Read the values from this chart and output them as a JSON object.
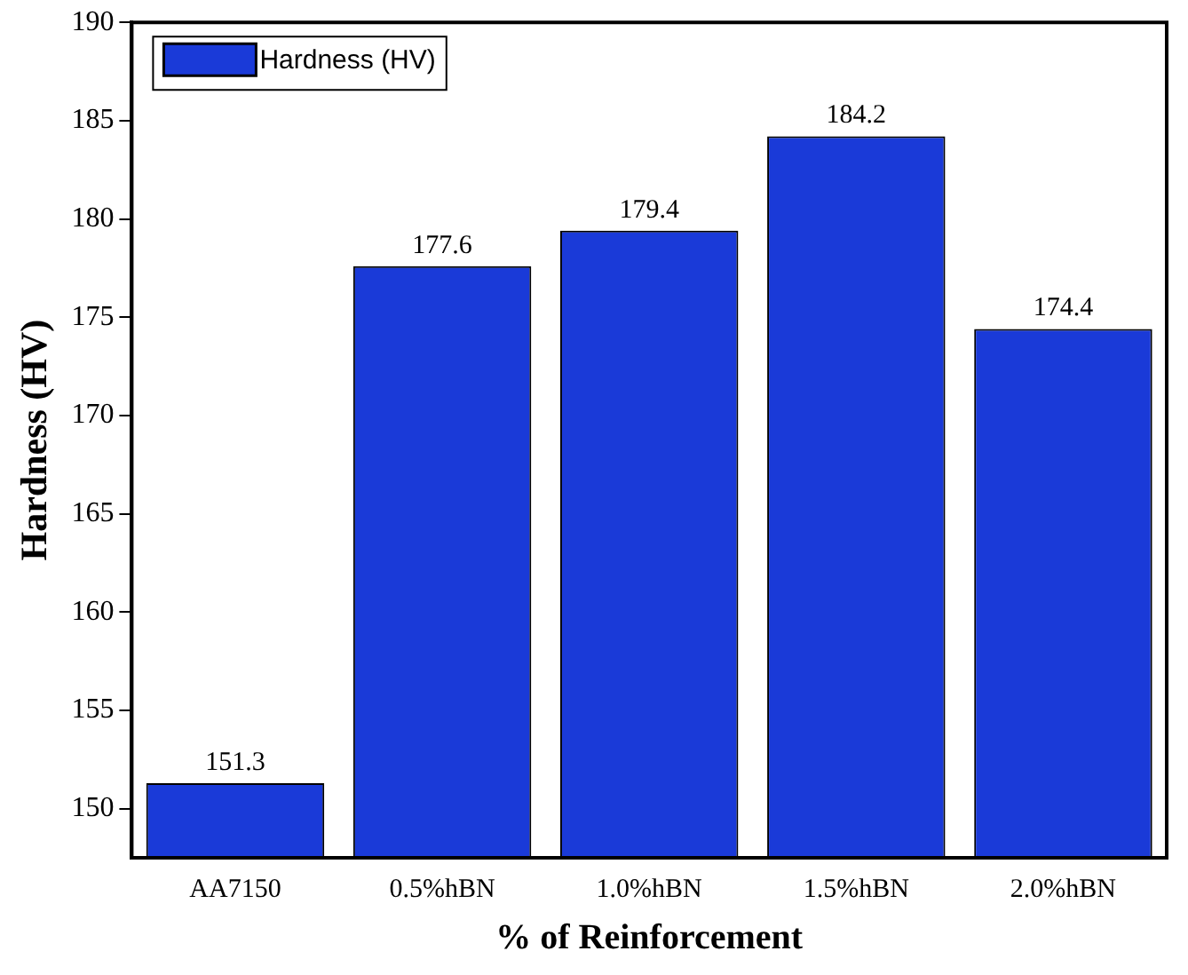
{
  "chart_data": {
    "type": "bar",
    "xlabel": "% of Reinforcement",
    "ylabel": "Hardness (HV)",
    "categories": [
      "AA7150",
      "0.5%hBN",
      "1.0%hBN",
      "1.5%hBN",
      "2.0%hBN"
    ],
    "series": [
      {
        "name": "Hardness (HV)",
        "color": "#1a3ad8",
        "values": [
          151.3,
          177.6,
          179.4,
          184.2,
          174.4
        ]
      }
    ],
    "ylim": [
      147.5,
      190
    ],
    "yticks": [
      150,
      155,
      160,
      165,
      170,
      175,
      180,
      185,
      190
    ],
    "data_labels": true,
    "legend": "top left",
    "grid": false
  }
}
